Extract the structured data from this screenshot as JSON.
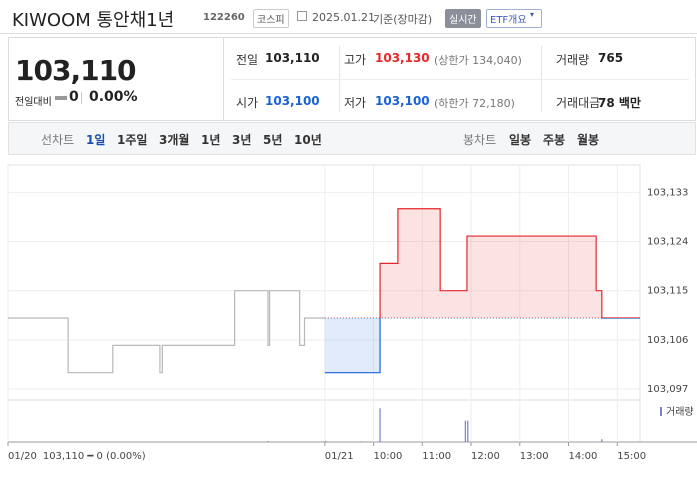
{
  "header": {
    "title": "KIWOOM 통안채1년",
    "code": "122260",
    "market": "코스피",
    "date": "2025.01.21",
    "basis": "기준(장마감)",
    "realtime": "실시간",
    "etf": "ETF개요"
  },
  "quote": {
    "price": "103,110",
    "change_label": "전일대비",
    "change": "0",
    "rate": "0.00%"
  },
  "stats": [
    {
      "label": "전일",
      "value": "103,110"
    },
    {
      "label": "고가",
      "value": "103,130",
      "note": "(상한가 134,040)"
    },
    {
      "label": "거래량",
      "value": "765"
    },
    {
      "label": "시가",
      "value": "103,100"
    },
    {
      "label": "저가",
      "value": "103,100",
      "note": "(하한가 72,180)"
    },
    {
      "label": "거래대금",
      "value": "78 백만"
    }
  ],
  "tabs": {
    "line_label": "선차트",
    "line_tabs": [
      "1일",
      "1주일",
      "3개월",
      "1년",
      "3년",
      "5년",
      "10년"
    ],
    "candle_label": "봉차트",
    "candle_tabs": [
      "일봉",
      "주봉",
      "월봉"
    ]
  },
  "chart_data": {
    "type": "step",
    "xlim": [
      -390,
      388
    ],
    "ylim": [
      103095,
      103138
    ],
    "yticks": [
      {
        "value": 103097,
        "label": "103,097"
      },
      {
        "value": 103106,
        "label": "103,106"
      },
      {
        "value": 103115,
        "label": "103,115"
      },
      {
        "value": 103124,
        "label": "103,124"
      },
      {
        "value": 103133,
        "label": "103,133"
      }
    ],
    "xticks": [
      {
        "value": -390,
        "label": "01/20"
      },
      {
        "value": 0,
        "label": "01/21"
      },
      {
        "value": 60,
        "label": "10:00"
      },
      {
        "value": 120,
        "label": "11:00"
      },
      {
        "value": 180,
        "label": "12:00"
      },
      {
        "value": 240,
        "label": "13:00"
      },
      {
        "value": 300,
        "label": "14:00"
      },
      {
        "value": 360,
        "label": "15:00"
      }
    ],
    "prev_summary": "103,110 ━ 0 (0.00%)",
    "reference": 103110,
    "grid": true,
    "series": [
      {
        "color": "#b8b8b8",
        "x": [
          -390,
          -316,
          -261,
          -203,
          -200,
          -111,
          -70,
          -68,
          -31,
          -25,
          -18,
          0
        ],
        "values": [
          103110,
          103100,
          103105,
          103100,
          103105,
          103115,
          103105,
          103115,
          103105,
          103110,
          103110,
          103110
        ]
      },
      {
        "color": "#e5262a",
        "down_color": "#1a62d6",
        "x": [
          0,
          68,
          90,
          142,
          175,
          334,
          341,
          388
        ],
        "values": [
          103100,
          103120,
          103130,
          103115,
          103125,
          103115,
          103110,
          103110
        ]
      }
    ],
    "volume": {
      "name": "거래량",
      "color": "#7b7fd0",
      "ylim": [
        0,
        320
      ],
      "x": [
        -70,
        1,
        45,
        68,
        173,
        176,
        341
      ],
      "values": [
        8,
        10,
        6,
        300,
        190,
        190,
        25
      ]
    }
  }
}
